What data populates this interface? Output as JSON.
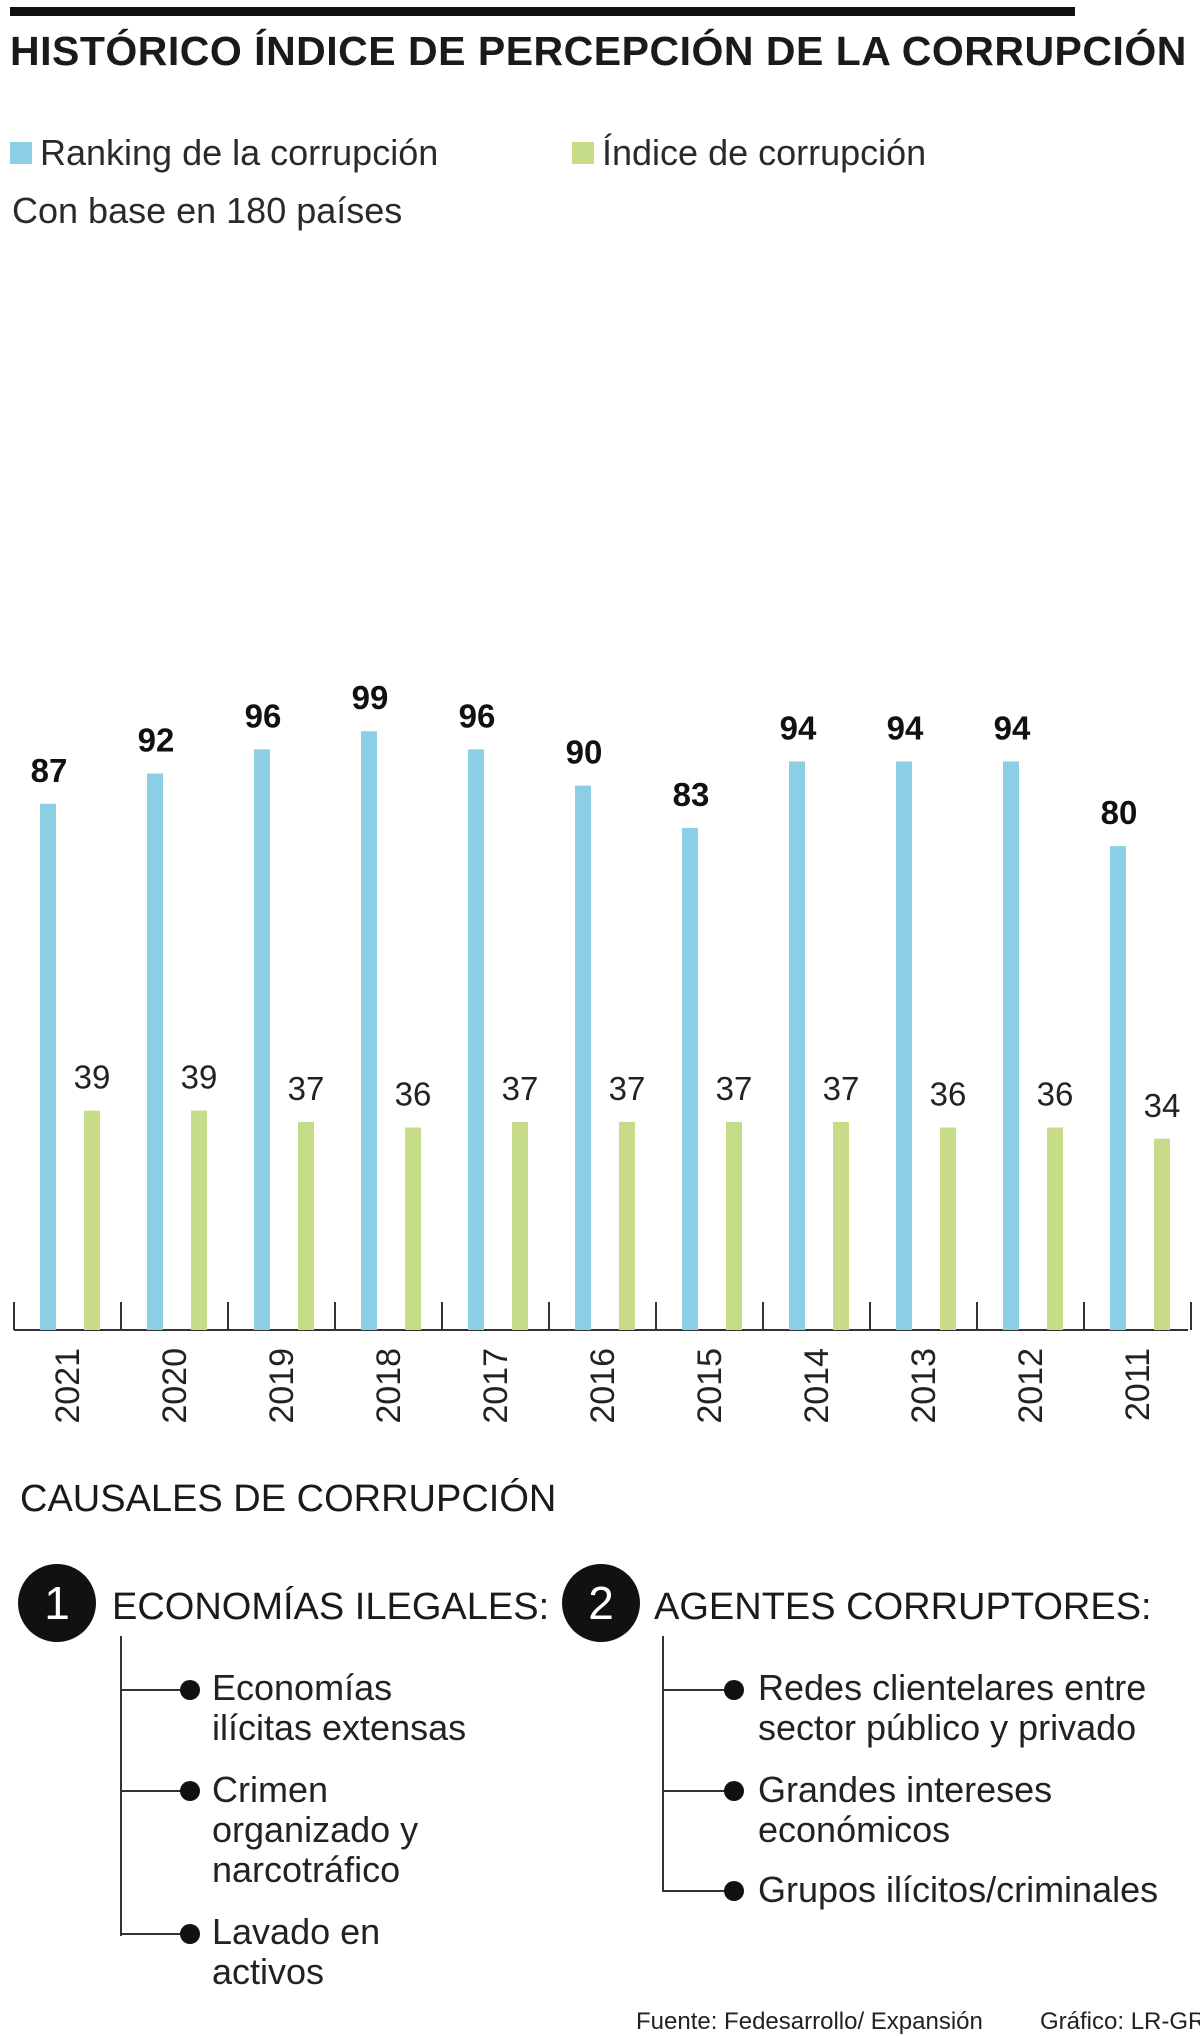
{
  "header": {
    "title": "HISTÓRICO ÍNDICE DE PERCEPCIÓN DE LA CORRUPCIÓN"
  },
  "legend": {
    "ranking_label": "Ranking de la corrupción",
    "index_label": "Índice de corrupción",
    "note": "Con base en 180 países"
  },
  "colors": {
    "ranking": "#8ccfe5",
    "index": "#c6dc88"
  },
  "chart_data": {
    "type": "bar",
    "title": "HISTÓRICO ÍNDICE DE PERCEPCIÓN DE LA CORRUPCIÓN",
    "categories": [
      "2021",
      "2020",
      "2019",
      "2018",
      "2017",
      "2016",
      "2015",
      "2014",
      "2013",
      "2012",
      "2011"
    ],
    "series": [
      {
        "name": "Ranking de la corrupción",
        "values": [
          87,
          92,
          96,
          99,
          96,
          90,
          83,
          94,
          94,
          94,
          80
        ]
      },
      {
        "name": "Índice de corrupción",
        "values": [
          39,
          39,
          37,
          36,
          37,
          37,
          37,
          37,
          36,
          36,
          34
        ]
      }
    ],
    "ranking_ylim": [
      0,
      124
    ],
    "index_ylim": [
      0,
      64
    ],
    "legend_position": "top-left",
    "grid": false
  },
  "causes": {
    "title": "CAUSALES DE CORRUPCIÓN",
    "groups": [
      {
        "number": "1",
        "title": "ECONOMÍAS ILEGALES:",
        "items": [
          [
            "Economías",
            "ilícitas extensas"
          ],
          [
            "Crimen",
            "organizado y",
            "narcotráfico"
          ],
          [
            "Lavado en",
            "activos"
          ]
        ]
      },
      {
        "number": "2",
        "title": "AGENTES CORRUPTORES:",
        "items": [
          [
            "Redes clientelares entre",
            "sector público y privado"
          ],
          [
            "Grandes intereses",
            "económicos"
          ],
          [
            "Grupos ilícitos/criminales"
          ]
        ]
      }
    ]
  },
  "footer": {
    "source": "Fuente: Fedesarrollo/ Expansión",
    "credit": "Gráfico: LR-GR"
  }
}
